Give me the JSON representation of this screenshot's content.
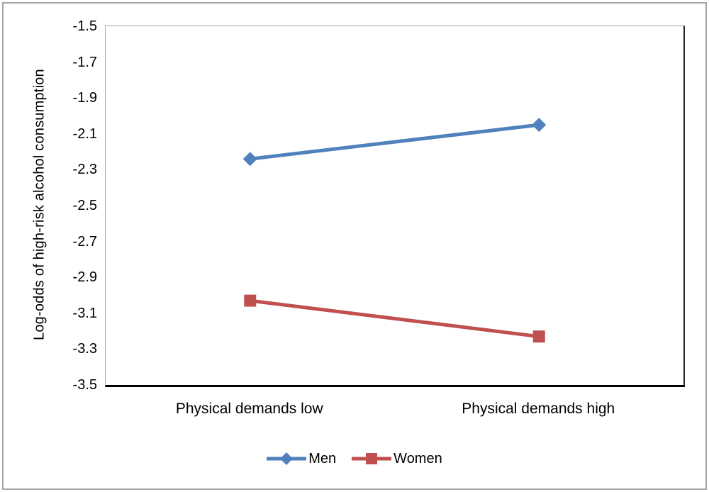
{
  "chart_data": {
    "type": "line",
    "title": "",
    "xlabel": "",
    "ylabel": "Log-odds of high-risk alcohol consumption",
    "categories": [
      "Physical demands low",
      "Physical demands high"
    ],
    "series": [
      {
        "name": "Men",
        "values": [
          -2.24,
          -2.05
        ],
        "color": "#4F81BD",
        "marker": "diamond"
      },
      {
        "name": "Women",
        "values": [
          -3.03,
          -3.23
        ],
        "color": "#C0504D",
        "marker": "square"
      }
    ],
    "ylim": [
      -3.5,
      -1.5
    ],
    "yticks": [
      -1.5,
      -1.7,
      -1.9,
      -2.1,
      -2.3,
      -2.5,
      -2.7,
      -2.9,
      -3.1,
      -3.3,
      -3.5
    ],
    "ytick_decimals": 1,
    "grid": false,
    "legend_position": "bottom"
  },
  "colors": {
    "series_men": "#4F81BD",
    "series_women": "#C0504D",
    "outer_frame": "#A6A6A6",
    "plot_border": "#A6A6A6",
    "axis_line": "#000000",
    "text": "#000000",
    "background": "#FFFFFF"
  }
}
